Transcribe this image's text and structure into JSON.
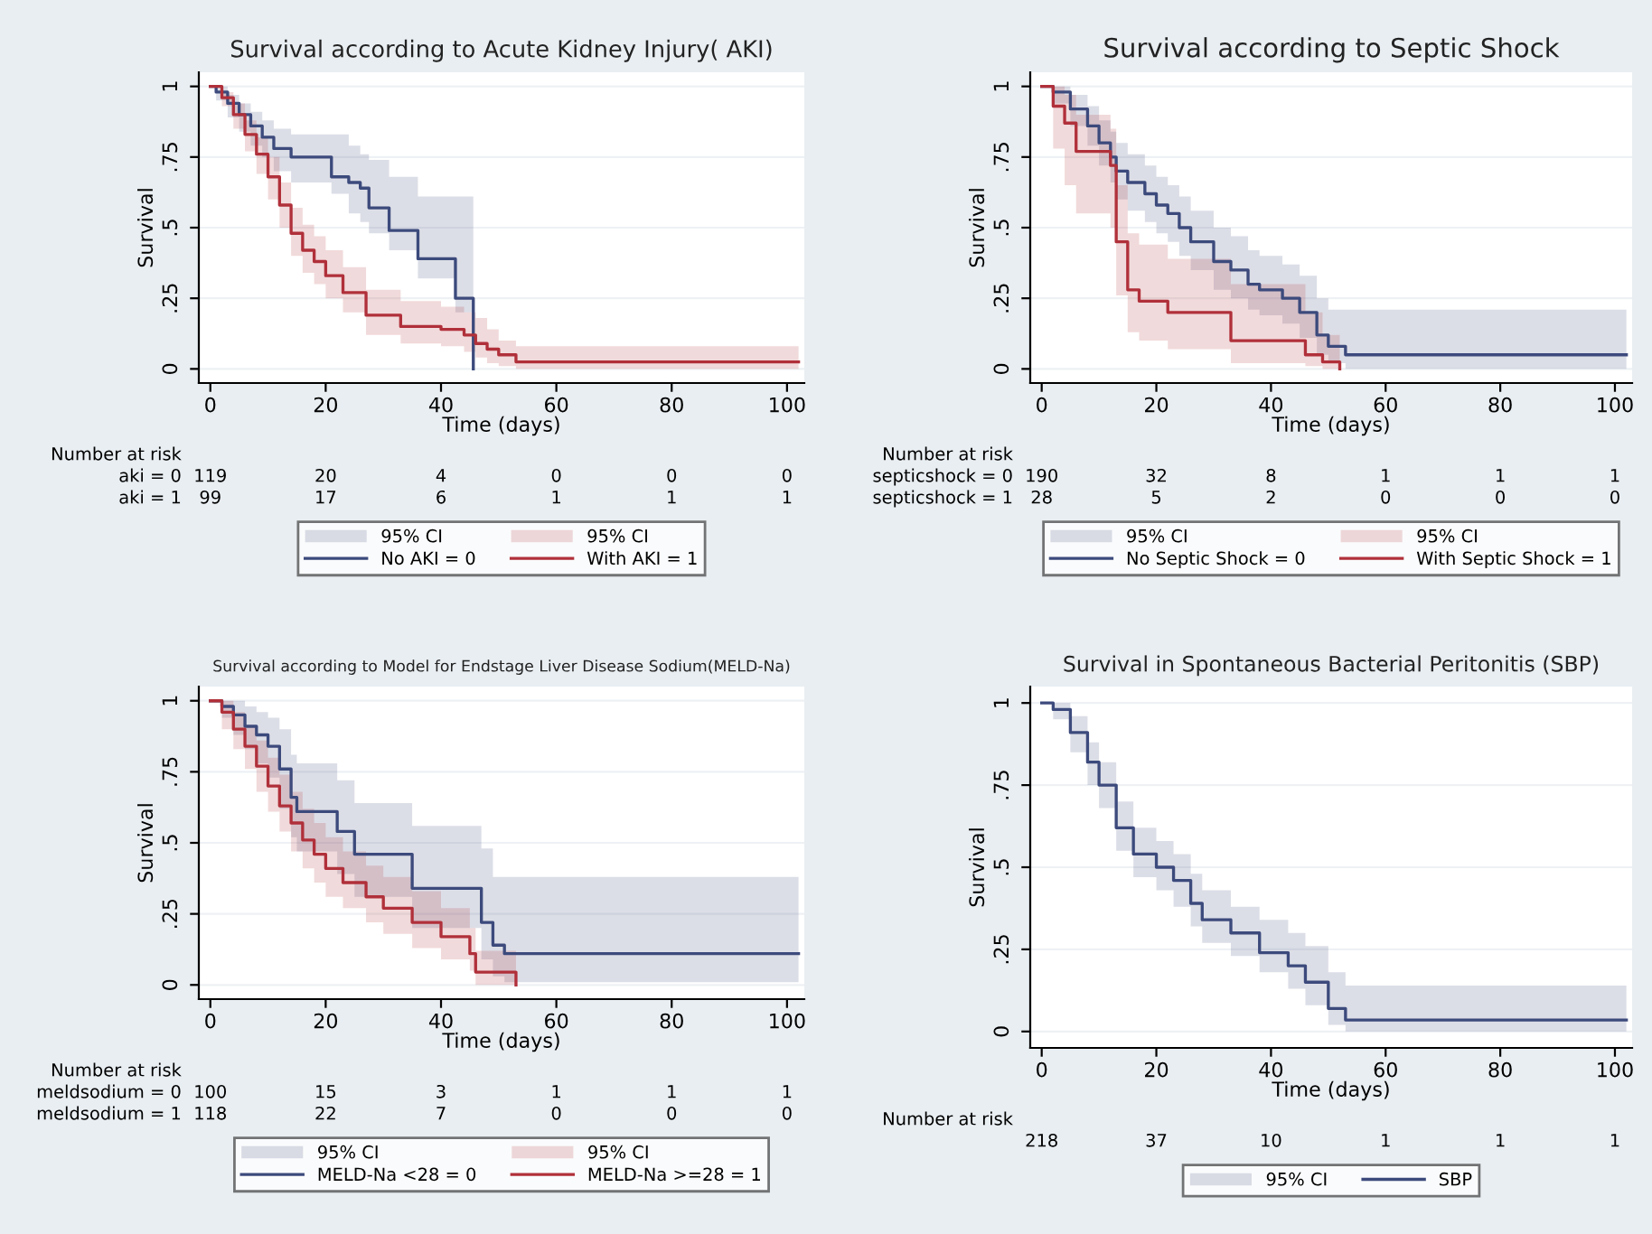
{
  "chart_data": [
    {
      "type": "step",
      "title": "Survival according to Acute Kidney Injury( AKI)",
      "xlabel": "Time (days)",
      "ylabel": "Survival",
      "xlim": [
        -2,
        103
      ],
      "ylim": [
        -0.05,
        1.05
      ],
      "xticks": [
        0,
        20,
        40,
        60,
        80,
        100
      ],
      "yticks": [
        {
          "value": 0,
          "label": "0"
        },
        {
          "value": 0.25,
          "label": ".25"
        },
        {
          "value": 0.5,
          "label": ".5"
        },
        {
          "value": 0.75,
          "label": ".75"
        },
        {
          "value": 1,
          "label": "1"
        }
      ],
      "grid": "y",
      "legend": "bottom",
      "series": [
        {
          "name": "No AKI = 0",
          "color": "#3c4a7c",
          "x": [
            0,
            1,
            3,
            5,
            7,
            9,
            11,
            14,
            21,
            24,
            26,
            27.5,
            31,
            36,
            42.5,
            45.6
          ],
          "values": [
            1,
            0.98,
            0.94,
            0.9,
            0.86,
            0.82,
            0.78,
            0.75,
            0.68,
            0.66,
            0.64,
            0.57,
            0.49,
            0.39,
            0.25,
            0
          ],
          "upper": [
            1,
            1,
            0.97,
            0.94,
            0.91,
            0.88,
            0.85,
            0.83,
            0.83,
            0.79,
            0.76,
            0.74,
            0.68,
            0.61,
            0.61,
            0.61
          ],
          "lower": [
            1,
            0.95,
            0.89,
            0.84,
            0.79,
            0.75,
            0.7,
            0.66,
            0.62,
            0.55,
            0.52,
            0.48,
            0.42,
            0.32,
            0.2,
            0.2
          ]
        },
        {
          "name": "With AKI = 1",
          "color": "#b0303a",
          "x": [
            0,
            2,
            4,
            6,
            8,
            10,
            12,
            14,
            16,
            18,
            20,
            23,
            27,
            33,
            40,
            44,
            46,
            48,
            50,
            53,
            102
          ],
          "values": [
            1,
            0.96,
            0.9,
            0.83,
            0.76,
            0.68,
            0.58,
            0.48,
            0.42,
            0.38,
            0.33,
            0.27,
            0.19,
            0.15,
            0.14,
            0.12,
            0.09,
            0.07,
            0.05,
            0.025,
            0.025
          ],
          "upper": [
            1,
            0.98,
            0.94,
            0.88,
            0.82,
            0.75,
            0.66,
            0.57,
            0.51,
            0.47,
            0.42,
            0.36,
            0.28,
            0.24,
            0.22,
            0.2,
            0.18,
            0.14,
            0.1,
            0.08,
            0.08
          ],
          "lower": [
            1,
            0.93,
            0.85,
            0.77,
            0.69,
            0.6,
            0.5,
            0.4,
            0.34,
            0.3,
            0.25,
            0.2,
            0.12,
            0.09,
            0.08,
            0.06,
            0.04,
            0.02,
            0.01,
            0,
            0
          ]
        }
      ],
      "annotations": [
        "95% CI",
        "95% CI",
        "Number at risk",
        "aki = 0",
        "119",
        "20",
        "4",
        "0",
        "0",
        "0",
        "aki = 1",
        "99",
        "17",
        "6",
        "1",
        "1",
        "1"
      ]
    },
    {
      "type": "step",
      "title": "Survival according to Septic Shock",
      "xlabel": "Time (days)",
      "ylabel": "Survival",
      "xlim": [
        -2,
        103
      ],
      "ylim": [
        -0.05,
        1.05
      ],
      "xticks": [
        0,
        20,
        40,
        60,
        80,
        100
      ],
      "yticks": [
        {
          "value": 0,
          "label": "0"
        },
        {
          "value": 0.25,
          "label": ".25"
        },
        {
          "value": 0.5,
          "label": ".5"
        },
        {
          "value": 0.75,
          "label": ".75"
        },
        {
          "value": 1,
          "label": "1"
        }
      ],
      "grid": "y",
      "legend": "bottom",
      "series": [
        {
          "name": "No Septic Shock = 0",
          "color": "#3c4a7c",
          "x": [
            0,
            2,
            5,
            8,
            10,
            12,
            13,
            15,
            18,
            20,
            22,
            24,
            26,
            30,
            33,
            36,
            38,
            42,
            45,
            48,
            50,
            53,
            102
          ],
          "values": [
            1,
            0.98,
            0.92,
            0.86,
            0.8,
            0.75,
            0.7,
            0.66,
            0.62,
            0.58,
            0.55,
            0.5,
            0.45,
            0.38,
            0.35,
            0.3,
            0.28,
            0.25,
            0.2,
            0.12,
            0.08,
            0.05,
            0.05
          ],
          "upper": [
            1,
            1,
            0.97,
            0.93,
            0.88,
            0.84,
            0.8,
            0.76,
            0.72,
            0.68,
            0.65,
            0.61,
            0.56,
            0.5,
            0.47,
            0.42,
            0.4,
            0.37,
            0.33,
            0.25,
            0.21,
            0.21,
            0.21
          ],
          "lower": [
            1,
            0.94,
            0.86,
            0.79,
            0.72,
            0.66,
            0.6,
            0.56,
            0.52,
            0.48,
            0.45,
            0.4,
            0.35,
            0.28,
            0.25,
            0.21,
            0.19,
            0.16,
            0.11,
            0.05,
            0.02,
            0,
            0
          ]
        },
        {
          "name": "With Septic Shock = 1",
          "color": "#b0303a",
          "x": [
            0,
            2,
            4,
            6,
            12,
            13,
            15,
            17,
            22,
            33,
            46,
            49,
            52
          ],
          "values": [
            1,
            0.93,
            0.87,
            0.77,
            0.72,
            0.45,
            0.28,
            0.24,
            0.2,
            0.1,
            0.05,
            0.025,
            0
          ],
          "upper": [
            1,
            1,
            0.97,
            0.9,
            0.85,
            0.65,
            0.48,
            0.44,
            0.39,
            0.3,
            0.2,
            0.12,
            0.05
          ],
          "lower": [
            1,
            0.78,
            0.65,
            0.55,
            0.5,
            0.26,
            0.13,
            0.1,
            0.07,
            0.02,
            0.01,
            0,
            0
          ]
        }
      ],
      "annotations": [
        "95% CI",
        "95% CI",
        "Number at risk",
        "septicshock = 0",
        "190",
        "32",
        "8",
        "1",
        "1",
        "1",
        "septicshock = 1",
        "28",
        "5",
        "2",
        "0",
        "0",
        "0"
      ]
    },
    {
      "type": "step",
      "title": "Survival according to Model for Endstage Liver Disease Sodium(MELD-Na)",
      "xlabel": "Time (days)",
      "ylabel": "Survival",
      "xlim": [
        -2,
        103
      ],
      "ylim": [
        -0.05,
        1.05
      ],
      "xticks": [
        0,
        20,
        40,
        60,
        80,
        100
      ],
      "yticks": [
        {
          "value": 0,
          "label": "0"
        },
        {
          "value": 0.25,
          "label": ".25"
        },
        {
          "value": 0.5,
          "label": ".5"
        },
        {
          "value": 0.75,
          "label": ".75"
        },
        {
          "value": 1,
          "label": "1"
        }
      ],
      "grid": "y",
      "legend": "bottom",
      "series": [
        {
          "name": "MELD-Na <28 = 0",
          "color": "#3c4a7c",
          "x": [
            0,
            2,
            4,
            6,
            8,
            10,
            12,
            14,
            15,
            22,
            25,
            35,
            47,
            49,
            51,
            102
          ],
          "values": [
            1,
            0.98,
            0.95,
            0.91,
            0.88,
            0.84,
            0.76,
            0.66,
            0.61,
            0.54,
            0.46,
            0.34,
            0.22,
            0.14,
            0.11,
            0.11
          ],
          "upper": [
            1,
            1,
            1,
            0.98,
            0.96,
            0.94,
            0.9,
            0.81,
            0.78,
            0.72,
            0.64,
            0.56,
            0.48,
            0.38,
            0.38,
            0.38
          ],
          "lower": [
            1,
            0.94,
            0.88,
            0.83,
            0.78,
            0.73,
            0.62,
            0.52,
            0.47,
            0.39,
            0.31,
            0.2,
            0.09,
            0.03,
            0.01,
            0.01
          ]
        },
        {
          "name": "MELD-Na >=28 = 1",
          "color": "#b0303a",
          "x": [
            0,
            2,
            4,
            6,
            8,
            10,
            12,
            14,
            16,
            18,
            20,
            23,
            27,
            30,
            35,
            40,
            45,
            46,
            53
          ],
          "values": [
            1,
            0.96,
            0.9,
            0.84,
            0.77,
            0.7,
            0.63,
            0.57,
            0.51,
            0.46,
            0.41,
            0.36,
            0.31,
            0.27,
            0.22,
            0.17,
            0.11,
            0.045,
            0
          ],
          "upper": [
            1,
            1,
            0.96,
            0.91,
            0.86,
            0.8,
            0.74,
            0.68,
            0.62,
            0.57,
            0.52,
            0.47,
            0.42,
            0.38,
            0.33,
            0.27,
            0.2,
            0.12,
            0.05
          ],
          "lower": [
            1,
            0.9,
            0.83,
            0.76,
            0.68,
            0.61,
            0.54,
            0.47,
            0.41,
            0.36,
            0.31,
            0.27,
            0.22,
            0.18,
            0.13,
            0.09,
            0.05,
            0,
            0
          ]
        }
      ],
      "annotations": [
        "95% CI",
        "95% CI",
        "Number at risk",
        "meldsodium = 0",
        "100",
        "15",
        "3",
        "1",
        "1",
        "1",
        "meldsodium = 1",
        "118",
        "22",
        "7",
        "0",
        "0",
        "0"
      ]
    },
    {
      "type": "step",
      "title": "Survival in Spontaneous Bacterial Peritonitis (SBP)",
      "xlabel": "Time (days)",
      "ylabel": "Survival",
      "xlim": [
        -2,
        103
      ],
      "ylim": [
        -0.05,
        1.05
      ],
      "xticks": [
        0,
        20,
        40,
        60,
        80,
        100
      ],
      "yticks": [
        {
          "value": 0,
          "label": "0"
        },
        {
          "value": 0.25,
          "label": ".25"
        },
        {
          "value": 0.5,
          "label": ".5"
        },
        {
          "value": 0.75,
          "label": ".75"
        },
        {
          "value": 1,
          "label": "1"
        }
      ],
      "grid": "y",
      "legend": "bottom",
      "series": [
        {
          "name": "SBP",
          "color": "#3c4a7c",
          "x": [
            0,
            2,
            5,
            8,
            10,
            13,
            16,
            20,
            23,
            26,
            28,
            33,
            38,
            43,
            46,
            50,
            53,
            102
          ],
          "values": [
            1,
            0.98,
            0.91,
            0.82,
            0.75,
            0.62,
            0.54,
            0.5,
            0.46,
            0.39,
            0.34,
            0.3,
            0.24,
            0.2,
            0.15,
            0.07,
            0.035,
            0.035
          ],
          "upper": [
            1,
            1,
            0.96,
            0.88,
            0.82,
            0.7,
            0.62,
            0.58,
            0.54,
            0.48,
            0.43,
            0.38,
            0.34,
            0.3,
            0.26,
            0.18,
            0.14,
            0.14
          ],
          "lower": [
            1,
            0.95,
            0.85,
            0.75,
            0.68,
            0.55,
            0.47,
            0.43,
            0.38,
            0.32,
            0.27,
            0.23,
            0.18,
            0.13,
            0.08,
            0.02,
            0,
            0
          ]
        }
      ],
      "annotations": [
        "95% CI",
        "Number at risk",
        "218",
        "37",
        "10",
        "1",
        "1",
        "1"
      ]
    }
  ]
}
